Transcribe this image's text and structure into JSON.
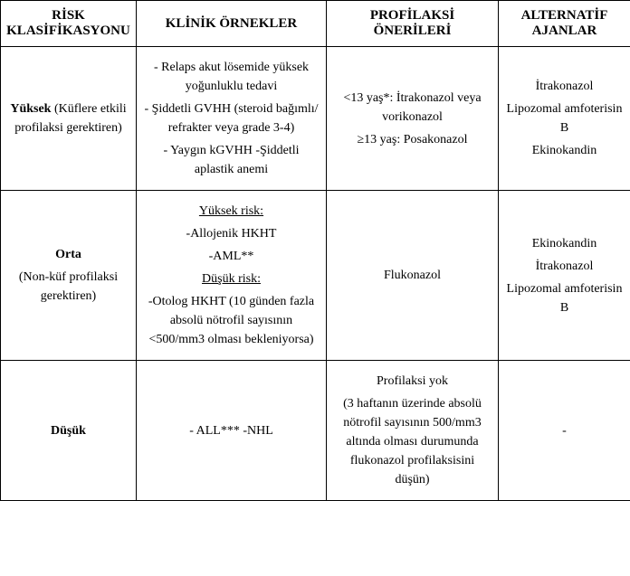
{
  "table": {
    "headers": {
      "risk": "RİSK KLASİFİKASYONU",
      "clinical": "KLİNİK ÖRNEKLER",
      "prophylaxis": "PROFİLAKSİ ÖNERİLERİ",
      "alternative": "ALTERNATİF AJANLAR"
    },
    "rows": [
      {
        "risk_bold": "Yüksek",
        "risk_rest": " (Küflere etkili profilaksi gerektiren)",
        "clinical_lines": [
          "- Relaps akut lösemide yüksek yoğunluklu tedavi",
          "- Şiddetli GVHH (steroid bağımlı/ refrakter veya grade 3-4)",
          "- Yaygın kGVHH -Şiddetli aplastik anemi"
        ],
        "prophylaxis_lines": [
          "<13 yaş*: İtrakonazol veya vorikonazol",
          "≥13 yaş: Posakonazol"
        ],
        "alternative_lines": [
          "İtrakonazol",
          "Lipozomal amfoterisin B",
          "Ekinokandin"
        ]
      },
      {
        "risk_bold": "Orta",
        "risk_rest_line2": "(Non-küf profilaksi gerektiren)",
        "clinical_high_label": "Yüksek risk:",
        "clinical_high_items": [
          "-Allojenik HKHT",
          "-AML**"
        ],
        "clinical_low_label": "Düşük risk:",
        "clinical_low_items": [
          "-Otolog HKHT (10 günden fazla absolü nötrofil sayısının <500/mm3 olması bekleniyorsa)"
        ],
        "prophylaxis_lines": [
          "Flukonazol"
        ],
        "alternative_lines": [
          "Ekinokandin",
          "İtrakonazol",
          "Lipozomal amfoterisin B"
        ]
      },
      {
        "risk_bold": "Düşük",
        "risk_rest": "",
        "clinical_lines": [
          "- ALL*** -NHL"
        ],
        "prophylaxis_lines": [
          "Profilaksi yok",
          "(3 haftanın üzerinde absolü nötrofil sayısının 500/mm3 altında olması durumunda flukonazol profilaksisini düşün)"
        ],
        "alternative_lines": [
          "-"
        ]
      }
    ]
  },
  "styles": {
    "border_color": "#000000",
    "background_color": "#ffffff",
    "header_fontsize": 15,
    "cell_fontsize": 14
  }
}
